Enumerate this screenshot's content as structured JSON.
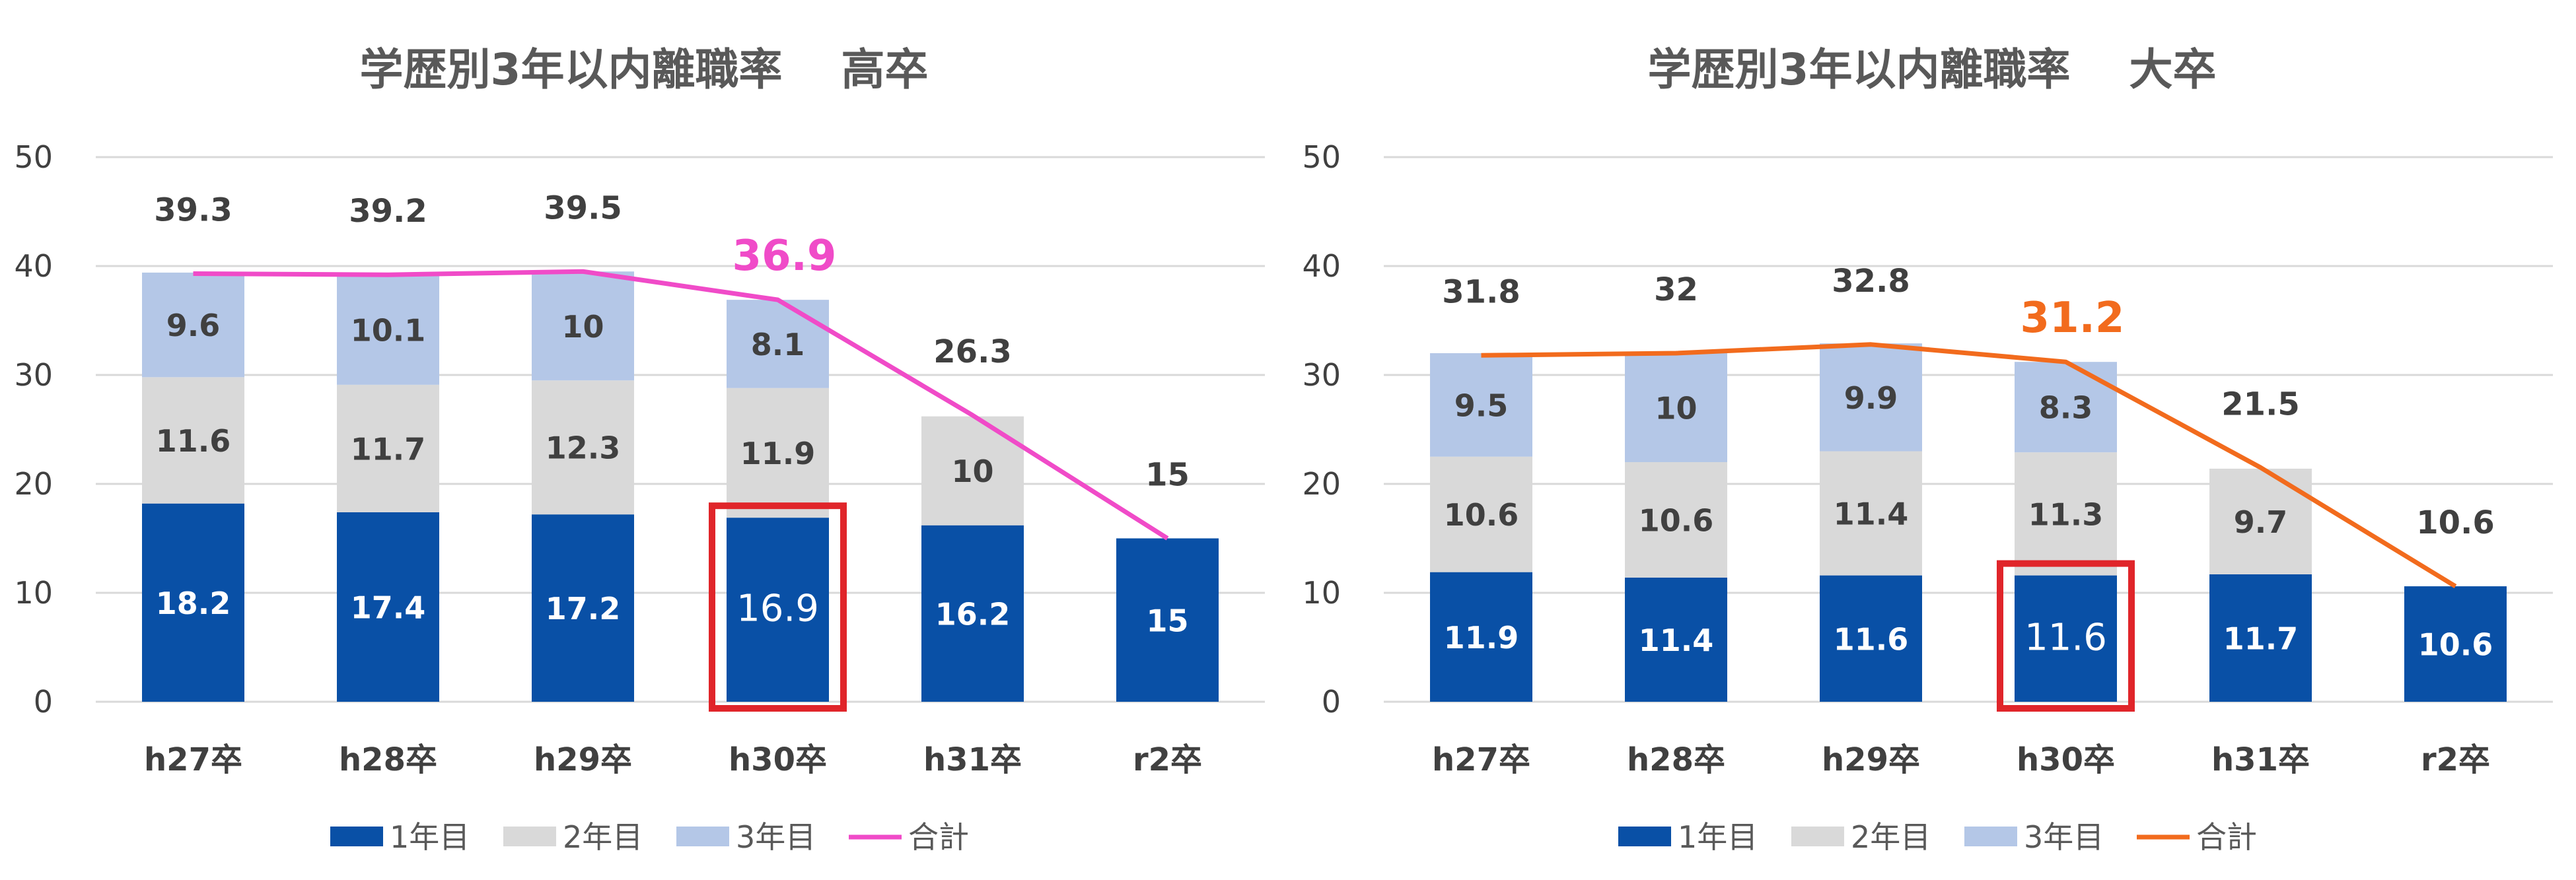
{
  "charts": [
    {
      "title": "学歴別3年以内離職率　 高卒",
      "highlight_color": "#f04bc8",
      "highlight_index": 3,
      "line_color": "#f04bc8"
    },
    {
      "title": "学歴別3年以内離職率　 大卒",
      "highlight_color": "#f26b1d",
      "highlight_index": 3,
      "line_color": "#f26b1d"
    }
  ],
  "colors": {
    "year1": "#0950a6",
    "year2": "#d9d9d9",
    "year3": "#b4c7e7",
    "gridline": "#d9d9d9",
    "highlight_box": "#e0252a"
  },
  "chart_data": [
    {
      "type": "bar",
      "stacked": true,
      "title": "学歴別3年以内離職率　 高卒",
      "categories": [
        "h27卒",
        "h28卒",
        "h29卒",
        "h30卒",
        "h31卒",
        "r2卒"
      ],
      "series": [
        {
          "name": "1年目",
          "values": [
            18.2,
            17.4,
            17.2,
            16.9,
            16.2,
            15
          ]
        },
        {
          "name": "2年目",
          "values": [
            11.6,
            11.7,
            12.3,
            11.9,
            10,
            null
          ]
        },
        {
          "name": "3年目",
          "values": [
            9.6,
            10.1,
            10,
            8.1,
            null,
            null
          ]
        }
      ],
      "line": {
        "name": "合計",
        "values": [
          39.3,
          39.2,
          39.5,
          36.9,
          26.3,
          15
        ]
      },
      "total_labels": [
        "39.3",
        "39.2",
        "39.5",
        "36.9",
        "26.3",
        "15"
      ],
      "ylim": [
        0,
        50
      ],
      "yticks": [
        "0",
        "10",
        "20",
        "30",
        "40",
        "50"
      ],
      "grid": true,
      "legend": "bottom"
    },
    {
      "type": "bar",
      "stacked": true,
      "title": "学歴別3年以内離職率　 大卒",
      "categories": [
        "h27卒",
        "h28卒",
        "h29卒",
        "h30卒",
        "h31卒",
        "r2卒"
      ],
      "series": [
        {
          "name": "1年目",
          "values": [
            11.9,
            11.4,
            11.6,
            11.6,
            11.7,
            10.6
          ]
        },
        {
          "name": "2年目",
          "values": [
            10.6,
            10.6,
            11.4,
            11.3,
            9.7,
            null
          ]
        },
        {
          "name": "3年目",
          "values": [
            9.5,
            10,
            9.9,
            8.3,
            null,
            null
          ]
        }
      ],
      "line": {
        "name": "合計",
        "values": [
          31.8,
          32,
          32.8,
          31.2,
          21.5,
          10.6
        ]
      },
      "total_labels": [
        "31.8",
        "32",
        "32.8",
        "31.2",
        "21.5",
        "10.6"
      ],
      "ylim": [
        0,
        50
      ],
      "yticks": [
        "0",
        "10",
        "20",
        "30",
        "40",
        "50"
      ],
      "grid": true,
      "legend": "bottom"
    }
  ]
}
